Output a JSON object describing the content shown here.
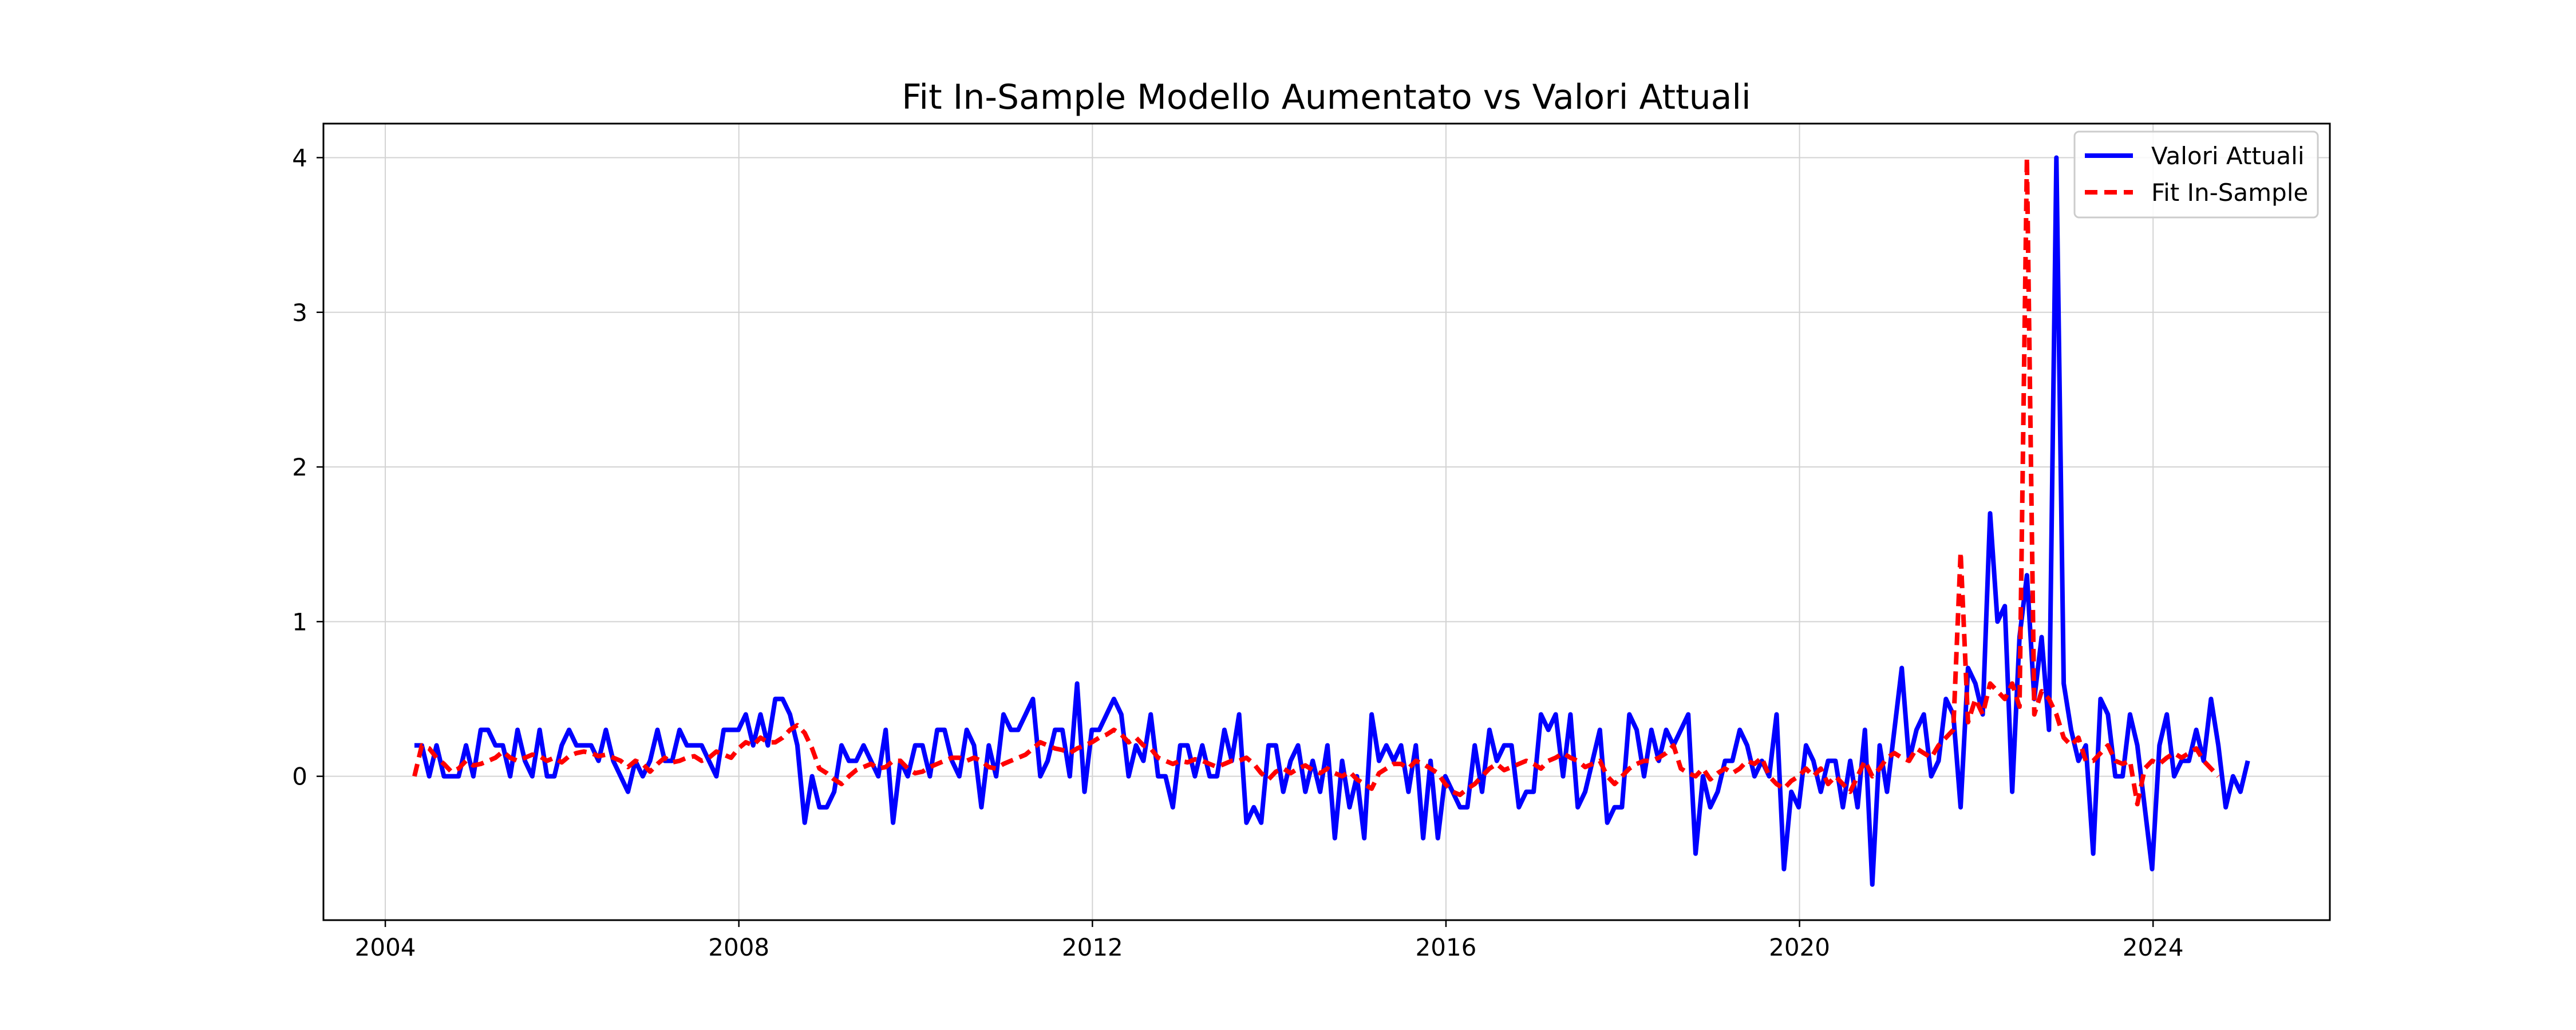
{
  "chart_data": {
    "type": "line",
    "title": "Fit In-Sample Modello Aumentato vs Valori Attuali",
    "xlabel": "",
    "ylabel": "",
    "xlim": [
      2003.3,
      2026.0
    ],
    "ylim": [
      -0.93,
      4.22
    ],
    "x_ticks": [
      2004,
      2008,
      2012,
      2016,
      2020,
      2024
    ],
    "x_tick_labels": [
      "2004",
      "2008",
      "2012",
      "2016",
      "2020",
      "2024"
    ],
    "y_ticks": [
      0,
      1,
      2,
      3,
      4
    ],
    "y_tick_labels": [
      "0",
      "1",
      "2",
      "3",
      "4"
    ],
    "grid": true,
    "legend_position": "top-right",
    "x_start": 2004.33,
    "x_step": 0.0833,
    "series": [
      {
        "name": "Valori Attuali",
        "color": "#0000ff",
        "style": "solid",
        "values": [
          0.2,
          0.2,
          0.0,
          0.2,
          0.0,
          0.0,
          0.0,
          0.2,
          0.0,
          0.3,
          0.3,
          0.2,
          0.2,
          0.0,
          0.3,
          0.1,
          0.0,
          0.3,
          0.0,
          0.0,
          0.2,
          0.3,
          0.2,
          0.2,
          0.2,
          0.1,
          0.3,
          0.1,
          0.0,
          -0.1,
          0.1,
          0.0,
          0.1,
          0.3,
          0.1,
          0.1,
          0.3,
          0.2,
          0.2,
          0.2,
          0.1,
          0.0,
          0.3,
          0.3,
          0.3,
          0.4,
          0.2,
          0.4,
          0.2,
          0.5,
          0.5,
          0.4,
          0.2,
          -0.3,
          0.0,
          -0.2,
          -0.2,
          -0.1,
          0.2,
          0.1,
          0.1,
          0.2,
          0.1,
          0.0,
          0.3,
          -0.3,
          0.1,
          0.0,
          0.2,
          0.2,
          0.0,
          0.3,
          0.3,
          0.1,
          0.0,
          0.3,
          0.2,
          -0.2,
          0.2,
          0.0,
          0.4,
          0.3,
          0.3,
          0.4,
          0.5,
          0.0,
          0.1,
          0.3,
          0.3,
          0.0,
          0.6,
          -0.1,
          0.3,
          0.3,
          0.4,
          0.5,
          0.4,
          0.0,
          0.2,
          0.1,
          0.4,
          0.0,
          0.0,
          -0.2,
          0.2,
          0.2,
          0.0,
          0.2,
          0.0,
          0.0,
          0.3,
          0.1,
          0.4,
          -0.3,
          -0.2,
          -0.3,
          0.2,
          0.2,
          -0.1,
          0.1,
          0.2,
          -0.1,
          0.1,
          -0.1,
          0.2,
          -0.4,
          0.1,
          -0.2,
          0.0,
          -0.4,
          0.4,
          0.1,
          0.2,
          0.1,
          0.2,
          -0.1,
          0.2,
          -0.4,
          0.1,
          -0.4,
          0.0,
          -0.1,
          -0.2,
          -0.2,
          0.2,
          -0.1,
          0.3,
          0.1,
          0.2,
          0.2,
          -0.2,
          -0.1,
          -0.1,
          0.4,
          0.3,
          0.4,
          0.0,
          0.4,
          -0.2,
          -0.1,
          0.1,
          0.3,
          -0.3,
          -0.2,
          -0.2,
          0.4,
          0.3,
          0.0,
          0.3,
          0.1,
          0.3,
          0.2,
          0.3,
          0.4,
          -0.5,
          0.0,
          -0.2,
          -0.1,
          0.1,
          0.1,
          0.3,
          0.2,
          0.0,
          0.1,
          0.0,
          0.4,
          -0.6,
          -0.1,
          -0.2,
          0.2,
          0.1,
          -0.1,
          0.1,
          0.1,
          -0.2,
          0.1,
          -0.2,
          0.3,
          -0.7,
          0.2,
          -0.1,
          0.3,
          0.7,
          0.1,
          0.3,
          0.4,
          0.0,
          0.1,
          0.5,
          0.4,
          -0.2,
          0.7,
          0.6,
          0.4,
          1.7,
          1.0,
          1.1,
          -0.1,
          0.9,
          1.3,
          0.5,
          0.9,
          0.3,
          4.0,
          0.6,
          0.3,
          0.1,
          0.2,
          -0.5,
          0.5,
          0.4,
          0.0,
          0.0,
          0.4,
          0.2,
          -0.2,
          -0.6,
          0.2,
          0.4,
          0.0,
          0.1,
          0.1,
          0.3,
          0.1,
          0.5,
          0.2,
          -0.2,
          0.0,
          -0.1,
          0.1
        ]
      },
      {
        "name": "Fit In-Sample",
        "color": "#ff0000",
        "style": "dashed",
        "values": [
          0.0,
          0.2,
          0.18,
          0.12,
          0.08,
          0.03,
          0.05,
          0.1,
          0.07,
          0.08,
          0.1,
          0.12,
          0.16,
          0.12,
          0.1,
          0.12,
          0.14,
          0.13,
          0.1,
          0.12,
          0.09,
          0.13,
          0.15,
          0.16,
          0.15,
          0.13,
          0.14,
          0.12,
          0.1,
          0.06,
          0.1,
          0.08,
          0.03,
          0.08,
          0.12,
          0.09,
          0.1,
          0.12,
          0.13,
          0.1,
          0.12,
          0.16,
          0.14,
          0.12,
          0.18,
          0.22,
          0.2,
          0.25,
          0.22,
          0.22,
          0.25,
          0.3,
          0.33,
          0.28,
          0.18,
          0.05,
          0.02,
          -0.02,
          -0.05,
          0.0,
          0.04,
          0.06,
          0.08,
          0.05,
          0.06,
          0.1,
          0.1,
          0.05,
          0.02,
          0.03,
          0.06,
          0.08,
          0.1,
          0.12,
          0.12,
          0.1,
          0.12,
          0.1,
          0.06,
          0.05,
          0.08,
          0.1,
          0.12,
          0.14,
          0.18,
          0.22,
          0.2,
          0.18,
          0.17,
          0.15,
          0.18,
          0.2,
          0.22,
          0.25,
          0.27,
          0.3,
          0.27,
          0.22,
          0.25,
          0.2,
          0.18,
          0.12,
          0.1,
          0.08,
          0.1,
          0.09,
          0.11,
          0.1,
          0.08,
          0.06,
          0.08,
          0.1,
          0.1,
          0.12,
          0.08,
          0.02,
          -0.02,
          0.03,
          0.05,
          0.02,
          0.05,
          0.07,
          0.04,
          0.02,
          0.05,
          0.02,
          0.0,
          0.03,
          -0.02,
          -0.05,
          -0.08,
          0.02,
          0.05,
          0.08,
          0.08,
          0.05,
          0.1,
          0.08,
          0.05,
          0.02,
          -0.05,
          -0.1,
          -0.12,
          -0.08,
          -0.05,
          0.0,
          0.05,
          0.08,
          0.04,
          0.06,
          0.08,
          0.1,
          0.08,
          0.05,
          0.1,
          0.12,
          0.15,
          0.12,
          0.1,
          0.06,
          0.08,
          0.1,
          0.0,
          -0.05,
          0.0,
          0.05,
          0.08,
          0.1,
          0.1,
          0.12,
          0.15,
          0.2,
          0.05,
          0.02,
          0.0,
          0.05,
          -0.02,
          0.02,
          0.05,
          0.02,
          0.05,
          0.1,
          0.08,
          0.12,
          0.0,
          -0.05,
          -0.08,
          -0.03,
          0.0,
          0.05,
          0.0,
          0.05,
          -0.05,
          0.0,
          -0.05,
          -0.1,
          0.0,
          0.1,
          0.0,
          0.05,
          0.12,
          0.15,
          0.12,
          0.1,
          0.18,
          0.15,
          0.12,
          0.2,
          0.25,
          0.3,
          1.45,
          0.35,
          0.5,
          0.4,
          0.6,
          0.55,
          0.5,
          0.6,
          0.45,
          4.0,
          0.4,
          0.55,
          0.5,
          0.4,
          0.25,
          0.2,
          0.25,
          0.1,
          0.1,
          0.15,
          0.2,
          0.1,
          0.08,
          0.1,
          -0.18,
          0.05,
          0.1,
          0.08,
          0.12,
          0.15,
          0.12,
          0.15,
          0.18,
          0.1,
          0.05,
          0.0
        ]
      }
    ]
  }
}
